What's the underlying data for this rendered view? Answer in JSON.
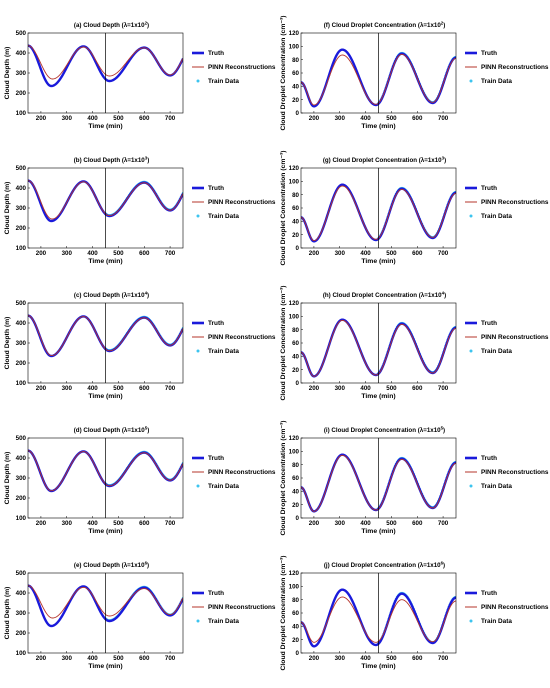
{
  "colors": {
    "truth": "#1a1adb",
    "pinn": "#b5342b",
    "train": "#3cc4ef",
    "divider": "#000000",
    "grid": "#bbbbbb"
  },
  "chart_data": [
    {
      "id": "a",
      "type": "line",
      "title_base": "(a) Cloud Depth (λ=1x10",
      "exponent": "2",
      "title_suffix": ")",
      "xlabel": "Time (min)",
      "ylabel": "Cloud Depth (m)",
      "xlim": [
        150,
        750
      ],
      "ylim": [
        100,
        500
      ],
      "xticks": [
        200,
        300,
        400,
        500,
        600,
        700
      ],
      "yticks": [
        100,
        200,
        300,
        400,
        500
      ],
      "divider_x": 450,
      "train_from": 450,
      "train_thin": true,
      "series": [
        {
          "name": "Truth"
        },
        {
          "name": "PINN Reconstructions"
        },
        {
          "name": "Train Data"
        }
      ],
      "truth": {
        "mean": 345,
        "amp": 88,
        "start_x": 150,
        "start_y": 437,
        "x": [
          240,
          365,
          465,
          600,
          700
        ],
        "y": [
          235,
          433,
          260,
          427,
          288
        ]
      },
      "pinn": {
        "mean": 345,
        "amp": 88,
        "start_x": 150,
        "start_y": 437,
        "x": [
          245,
          365,
          465,
          600,
          700
        ],
        "y": [
          270,
          430,
          285,
          426,
          290
        ]
      }
    },
    {
      "id": "f",
      "type": "line",
      "title_base": "(f) Cloud Droplet Concentration (λ=1x10",
      "exponent": "2",
      "title_suffix": ")",
      "xlabel": "Time (min)",
      "ylabel": "Cloud Droplet Concentration (cm⁻³)",
      "xlim": [
        150,
        750
      ],
      "ylim": [
        0,
        120
      ],
      "xticks": [
        200,
        300,
        400,
        500,
        600,
        700
      ],
      "yticks": [
        0,
        20,
        40,
        60,
        80,
        100,
        120
      ],
      "divider_x": 450,
      "train_from": 450,
      "train_thin": false,
      "series": [
        {
          "name": "Truth"
        },
        {
          "name": "PINN Reconstructions"
        },
        {
          "name": "Train Data"
        }
      ],
      "truth": {
        "mean": 50,
        "amp": 40,
        "start_x": 150,
        "start_y": 46,
        "x": [
          200,
          310,
          440,
          540,
          660,
          750
        ],
        "y": [
          10,
          95,
          12,
          89,
          15,
          83
        ]
      },
      "pinn": {
        "mean": 50,
        "amp": 40,
        "start_x": 150,
        "start_y": 46,
        "x": [
          200,
          310,
          440,
          540,
          660,
          750
        ],
        "y": [
          12,
          87,
          13,
          88,
          16,
          82
        ]
      }
    },
    {
      "id": "b",
      "type": "line",
      "title_base": "(b) Cloud Depth (λ=1x10",
      "exponent": "3",
      "title_suffix": ")",
      "xlabel": "Time (min)",
      "ylabel": "Cloud Depth (m)",
      "xlim": [
        150,
        750
      ],
      "ylim": [
        100,
        500
      ],
      "xticks": [
        200,
        300,
        400,
        500,
        600,
        700
      ],
      "yticks": [
        100,
        200,
        300,
        400,
        500
      ],
      "divider_x": 450,
      "train_from": 450,
      "train_thin": false,
      "series": [
        {
          "name": "Truth"
        },
        {
          "name": "PINN Reconstructions"
        },
        {
          "name": "Train Data"
        }
      ],
      "truth": {
        "mean": 345,
        "amp": 88,
        "start_x": 150,
        "start_y": 437,
        "x": [
          240,
          365,
          465,
          600,
          700
        ],
        "y": [
          235,
          433,
          260,
          427,
          288
        ]
      },
      "pinn": {
        "mean": 345,
        "amp": 88,
        "start_x": 150,
        "start_y": 437,
        "x": [
          243,
          365,
          465,
          600,
          700
        ],
        "y": [
          245,
          431,
          262,
          426,
          289
        ]
      }
    },
    {
      "id": "g",
      "type": "line",
      "title_base": "(g) Cloud Droplet Concentration (λ=1x10",
      "exponent": "3",
      "title_suffix": ")",
      "xlabel": "Time (min)",
      "ylabel": "Cloud Droplet Concentration (cm⁻³)",
      "xlim": [
        150,
        750
      ],
      "ylim": [
        0,
        120
      ],
      "xticks": [
        200,
        300,
        400,
        500,
        600,
        700
      ],
      "yticks": [
        0,
        20,
        40,
        60,
        80,
        100,
        120
      ],
      "divider_x": 450,
      "train_from": 450,
      "train_thin": false,
      "series": [
        {
          "name": "Truth"
        },
        {
          "name": "PINN Reconstructions"
        },
        {
          "name": "Train Data"
        }
      ],
      "truth": {
        "mean": 50,
        "amp": 40,
        "start_x": 150,
        "start_y": 46,
        "x": [
          200,
          310,
          440,
          540,
          660,
          750
        ],
        "y": [
          10,
          95,
          12,
          89,
          15,
          83
        ]
      },
      "pinn": {
        "mean": 50,
        "amp": 40,
        "start_x": 150,
        "start_y": 46,
        "x": [
          200,
          310,
          440,
          540,
          660,
          750
        ],
        "y": [
          11,
          93,
          13,
          88,
          16,
          82
        ]
      }
    },
    {
      "id": "c",
      "type": "line",
      "title_base": "(c) Cloud Depth (λ=1x10",
      "exponent": "4",
      "title_suffix": ")",
      "xlabel": "Time (min)",
      "ylabel": "Cloud Depth (m)",
      "xlim": [
        150,
        750
      ],
      "ylim": [
        100,
        500
      ],
      "xticks": [
        200,
        300,
        400,
        500,
        600,
        700
      ],
      "yticks": [
        100,
        200,
        300,
        400,
        500
      ],
      "divider_x": 450,
      "train_from": 450,
      "train_thin": false,
      "series": [
        {
          "name": "Truth"
        },
        {
          "name": "PINN Reconstructions"
        },
        {
          "name": "Train Data"
        }
      ],
      "truth": {
        "mean": 345,
        "amp": 88,
        "start_x": 150,
        "start_y": 437,
        "x": [
          240,
          365,
          465,
          600,
          700
        ],
        "y": [
          235,
          433,
          260,
          427,
          288
        ]
      },
      "pinn": {
        "mean": 345,
        "amp": 88,
        "start_x": 150,
        "start_y": 437,
        "x": [
          241,
          365,
          465,
          600,
          700
        ],
        "y": [
          237,
          432,
          261,
          426,
          289
        ]
      }
    },
    {
      "id": "h",
      "type": "line",
      "title_base": "(h) Cloud Droplet Concentration (λ=1x10",
      "exponent": "4",
      "title_suffix": ")",
      "xlabel": "Time (min)",
      "ylabel": "Cloud Droplet Concentration (cm⁻³)",
      "xlim": [
        150,
        750
      ],
      "ylim": [
        0,
        120
      ],
      "xticks": [
        200,
        300,
        400,
        500,
        600,
        700
      ],
      "yticks": [
        0,
        20,
        40,
        60,
        80,
        100,
        120
      ],
      "divider_x": 450,
      "train_from": 450,
      "train_thin": false,
      "series": [
        {
          "name": "Truth"
        },
        {
          "name": "PINN Reconstructions"
        },
        {
          "name": "Train Data"
        }
      ],
      "truth": {
        "mean": 50,
        "amp": 40,
        "start_x": 150,
        "start_y": 46,
        "x": [
          200,
          310,
          440,
          540,
          660,
          750
        ],
        "y": [
          10,
          95,
          12,
          89,
          15,
          83
        ]
      },
      "pinn": {
        "mean": 50,
        "amp": 40,
        "start_x": 150,
        "start_y": 46,
        "x": [
          200,
          310,
          440,
          540,
          660,
          750
        ],
        "y": [
          10,
          94,
          12,
          88,
          15,
          82
        ]
      }
    },
    {
      "id": "d",
      "type": "line",
      "title_base": "(d) Cloud Depth (λ=1x10",
      "exponent": "5",
      "title_suffix": ")",
      "xlabel": "Time (min)",
      "ylabel": "Cloud Depth (m)",
      "xlim": [
        150,
        750
      ],
      "ylim": [
        100,
        500
      ],
      "xticks": [
        200,
        300,
        400,
        500,
        600,
        700
      ],
      "yticks": [
        100,
        200,
        300,
        400,
        500
      ],
      "divider_x": 450,
      "train_from": 450,
      "train_thin": false,
      "series": [
        {
          "name": "Truth"
        },
        {
          "name": "PINN Reconstructions"
        },
        {
          "name": "Train Data"
        }
      ],
      "truth": {
        "mean": 345,
        "amp": 88,
        "start_x": 150,
        "start_y": 437,
        "x": [
          240,
          365,
          465,
          600,
          700
        ],
        "y": [
          235,
          433,
          260,
          427,
          288
        ]
      },
      "pinn": {
        "mean": 345,
        "amp": 88,
        "start_x": 150,
        "start_y": 437,
        "x": [
          240,
          365,
          465,
          600,
          700
        ],
        "y": [
          236,
          432,
          261,
          426,
          289
        ]
      }
    },
    {
      "id": "i",
      "type": "line",
      "title_base": "(i) Cloud Droplet Concentration (λ=1x10",
      "exponent": "5",
      "title_suffix": ")",
      "xlabel": "Time (min)",
      "ylabel": "Cloud Droplet Concentration (cm⁻³)",
      "xlim": [
        150,
        750
      ],
      "ylim": [
        0,
        120
      ],
      "xticks": [
        200,
        300,
        400,
        500,
        600,
        700
      ],
      "yticks": [
        0,
        20,
        40,
        60,
        80,
        100,
        120
      ],
      "divider_x": 450,
      "train_from": 450,
      "train_thin": false,
      "series": [
        {
          "name": "Truth"
        },
        {
          "name": "PINN Reconstructions"
        },
        {
          "name": "Train Data"
        }
      ],
      "truth": {
        "mean": 50,
        "amp": 40,
        "start_x": 150,
        "start_y": 46,
        "x": [
          200,
          310,
          440,
          540,
          660,
          750
        ],
        "y": [
          10,
          95,
          12,
          89,
          15,
          83
        ]
      },
      "pinn": {
        "mean": 50,
        "amp": 40,
        "start_x": 150,
        "start_y": 46,
        "x": [
          200,
          310,
          440,
          540,
          660,
          750
        ],
        "y": [
          10,
          94,
          12,
          88,
          15,
          82
        ]
      }
    },
    {
      "id": "e",
      "type": "line",
      "title_base": "(e) Cloud Depth (λ=1x10",
      "exponent": "6",
      "title_suffix": ")",
      "xlabel": "Time (min)",
      "ylabel": "Cloud Depth (m)",
      "xlim": [
        150,
        750
      ],
      "ylim": [
        100,
        500
      ],
      "xticks": [
        200,
        300,
        400,
        500,
        600,
        700
      ],
      "yticks": [
        100,
        200,
        300,
        400,
        500
      ],
      "divider_x": 450,
      "train_from": 450,
      "train_thin": false,
      "series": [
        {
          "name": "Truth"
        },
        {
          "name": "PINN Reconstructions"
        },
        {
          "name": "Train Data"
        }
      ],
      "truth": {
        "mean": 345,
        "amp": 88,
        "start_x": 150,
        "start_y": 437,
        "x": [
          240,
          365,
          465,
          600,
          700
        ],
        "y": [
          235,
          433,
          260,
          427,
          288
        ]
      },
      "pinn": {
        "mean": 345,
        "amp": 88,
        "start_x": 150,
        "start_y": 437,
        "x": [
          245,
          365,
          465,
          600,
          700
        ],
        "y": [
          275,
          428,
          285,
          422,
          292
        ]
      }
    },
    {
      "id": "j",
      "type": "line",
      "title_base": "(j) Cloud Droplet Concentration (λ=1x10",
      "exponent": "6",
      "title_suffix": ")",
      "xlabel": "Time (min)",
      "ylabel": "Cloud Droplet Concentration (cm⁻³)",
      "xlim": [
        150,
        750
      ],
      "ylim": [
        0,
        120
      ],
      "xticks": [
        200,
        300,
        400,
        500,
        600,
        700
      ],
      "yticks": [
        0,
        20,
        40,
        60,
        80,
        100,
        120
      ],
      "divider_x": 450,
      "train_from": 450,
      "train_thin": false,
      "series": [
        {
          "name": "Truth"
        },
        {
          "name": "PINN Reconstructions"
        },
        {
          "name": "Train Data"
        }
      ],
      "truth": {
        "mean": 50,
        "amp": 40,
        "start_x": 150,
        "start_y": 46,
        "x": [
          200,
          310,
          440,
          540,
          660,
          750
        ],
        "y": [
          10,
          95,
          12,
          89,
          15,
          83
        ]
      },
      "pinn": {
        "mean": 50,
        "amp": 40,
        "start_x": 150,
        "start_y": 46,
        "x": [
          200,
          310,
          440,
          540,
          660,
          750
        ],
        "y": [
          16,
          84,
          16,
          80,
          17,
          78
        ]
      }
    }
  ]
}
